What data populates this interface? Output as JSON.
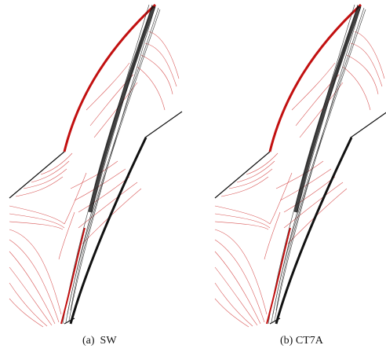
{
  "panels": [
    {
      "caption": "(a)  SW"
    },
    {
      "caption": "(b) CT7A"
    }
  ]
}
